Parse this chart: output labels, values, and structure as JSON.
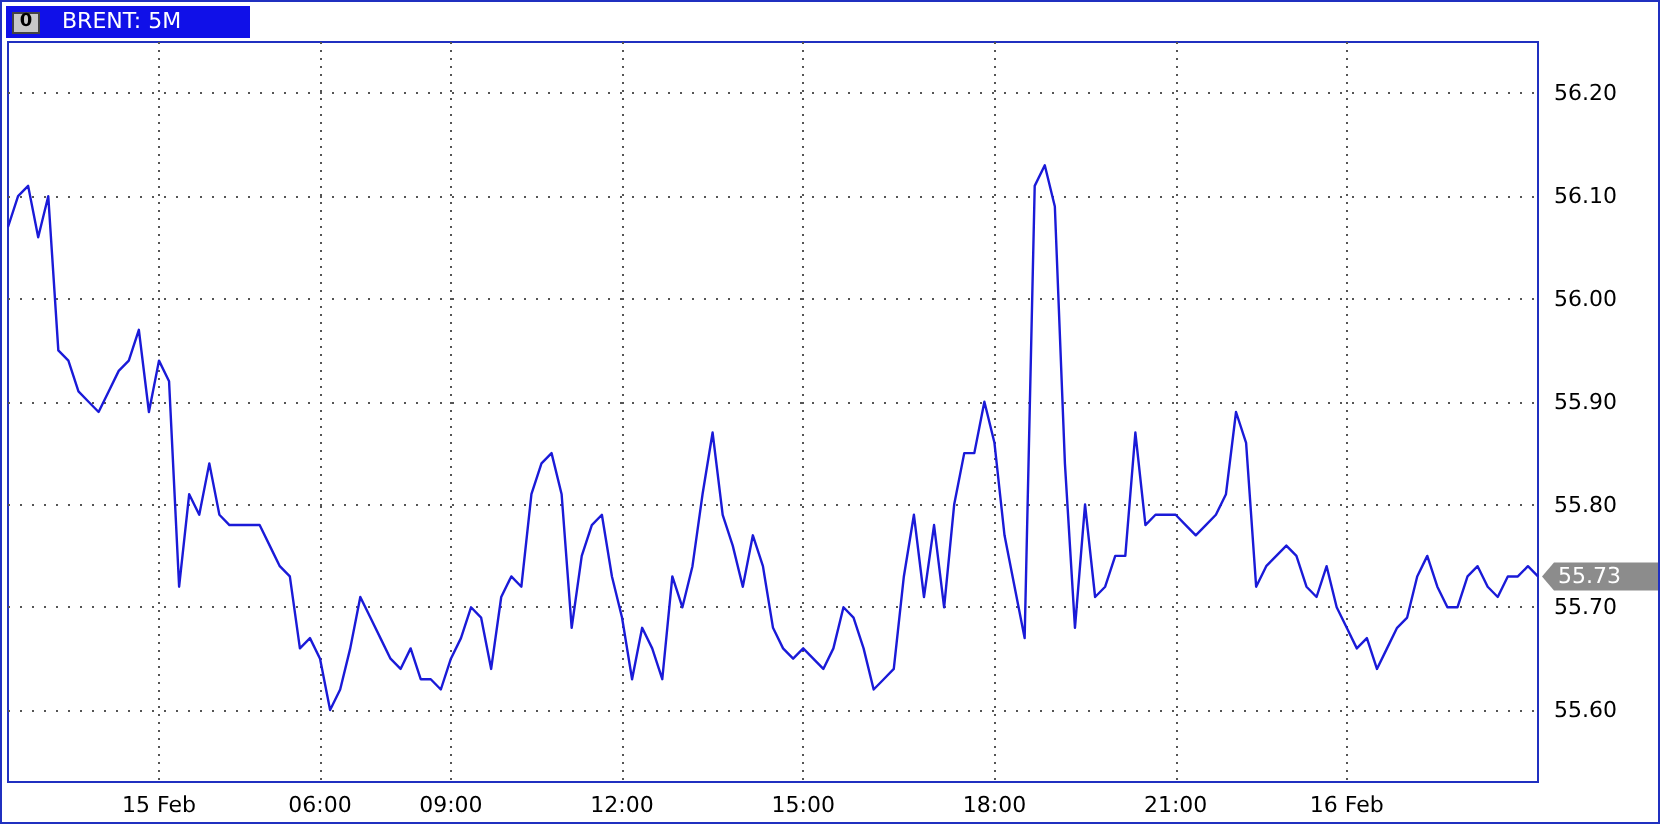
{
  "chart_data": {
    "type": "line",
    "title": "BRENT: 5M",
    "categories": [
      null,
      null,
      null,
      null,
      null,
      null,
      null,
      null,
      null,
      null,
      null,
      null,
      null,
      null,
      null,
      "15 Feb",
      null,
      null,
      null,
      null,
      null,
      null,
      null,
      null,
      null,
      null,
      null,
      null,
      null,
      null,
      null,
      "06:00",
      null,
      null,
      null,
      null,
      null,
      null,
      null,
      null,
      null,
      null,
      null,
      null,
      "09:00",
      null,
      null,
      null,
      null,
      null,
      null,
      null,
      null,
      null,
      null,
      null,
      null,
      null,
      null,
      null,
      null,
      "12:00",
      null,
      null,
      null,
      null,
      null,
      null,
      null,
      null,
      null,
      null,
      null,
      null,
      null,
      null,
      null,
      null,
      null,
      "15:00",
      null,
      null,
      null,
      null,
      null,
      null,
      null,
      null,
      null,
      null,
      null,
      null,
      null,
      null,
      null,
      null,
      null,
      null,
      "18:00",
      null,
      null,
      null,
      null,
      null,
      null,
      null,
      null,
      null,
      null,
      null,
      null,
      null,
      null,
      null,
      null,
      null,
      "21:00",
      null,
      null,
      null,
      null,
      null,
      null,
      null,
      null,
      null,
      null,
      null,
      null,
      null,
      null,
      null,
      null,
      "16 Feb",
      null,
      null,
      null,
      null,
      null,
      null,
      null,
      null,
      null,
      null,
      null,
      null,
      null,
      null,
      null,
      null,
      null,
      null,
      null
    ],
    "series": [
      {
        "color": "#1a1ad8",
        "values": [
          56.07,
          56.1,
          56.11,
          56.06,
          56.1,
          55.95,
          55.94,
          55.91,
          55.9,
          55.89,
          55.91,
          55.93,
          55.94,
          55.97,
          55.89,
          55.94,
          55.92,
          55.72,
          55.81,
          55.79,
          55.84,
          55.79,
          55.78,
          55.78,
          55.78,
          55.78,
          55.76,
          55.74,
          55.73,
          55.66,
          55.67,
          55.65,
          55.6,
          55.62,
          55.66,
          55.71,
          55.69,
          55.67,
          55.65,
          55.64,
          55.66,
          55.63,
          55.63,
          55.62,
          55.65,
          55.67,
          55.7,
          55.69,
          55.64,
          55.71,
          55.73,
          55.72,
          55.81,
          55.84,
          55.85,
          55.81,
          55.68,
          55.75,
          55.78,
          55.79,
          55.73,
          55.69,
          55.63,
          55.68,
          55.66,
          55.63,
          55.73,
          55.7,
          55.74,
          55.81,
          55.87,
          55.79,
          55.76,
          55.72,
          55.77,
          55.74,
          55.68,
          55.66,
          55.65,
          55.66,
          55.65,
          55.64,
          55.66,
          55.7,
          55.69,
          55.66,
          55.62,
          55.63,
          55.64,
          55.73,
          55.79,
          55.71,
          55.78,
          55.7,
          55.8,
          55.85,
          55.85,
          55.9,
          55.86,
          55.77,
          55.72,
          55.67,
          56.11,
          56.13,
          56.09,
          55.84,
          55.68,
          55.8,
          55.71,
          55.72,
          55.75,
          55.75,
          55.87,
          55.78,
          55.79,
          55.79,
          55.79,
          55.78,
          55.77,
          55.78,
          55.79,
          55.81,
          55.89,
          55.86,
          55.72,
          55.74,
          55.75,
          55.76,
          55.75,
          55.72,
          55.71,
          55.74,
          55.7,
          55.68,
          55.66,
          55.67,
          55.64,
          55.66,
          55.68,
          55.69,
          55.73,
          55.75,
          55.72,
          55.7,
          55.7,
          55.73,
          55.74,
          55.72,
          55.71,
          55.73,
          55.73,
          55.74,
          55.73
        ]
      }
    ],
    "ylim": [
      55.53,
      56.25
    ],
    "yticks": [
      {
        "value": 55.6,
        "label": "55.60"
      },
      {
        "value": 55.7,
        "label": "55.70"
      },
      {
        "value": 55.8,
        "label": "55.80"
      },
      {
        "value": 55.9,
        "label": "55.90"
      },
      {
        "value": 56.0,
        "label": "56.00"
      },
      {
        "value": 56.1,
        "label": "56.10"
      },
      {
        "value": 56.2,
        "label": "56.20"
      }
    ],
    "grid": true,
    "annotations": [
      "0",
      "55.73"
    ]
  }
}
